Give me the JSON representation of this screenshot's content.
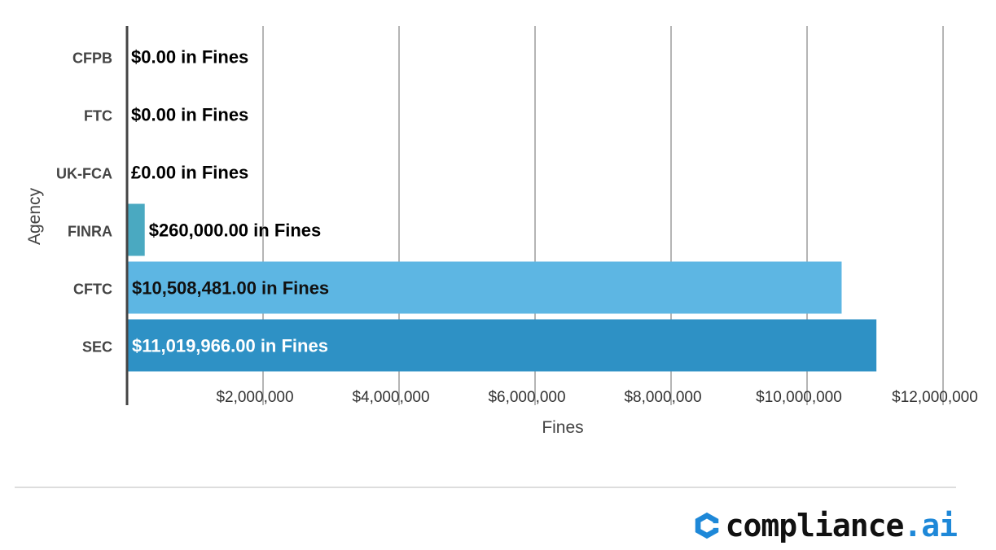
{
  "chart_data": {
    "type": "bar",
    "orientation": "horizontal",
    "categories": [
      "CFPB",
      "FTC",
      "UK-FCA",
      "FINRA",
      "CFTC",
      "SEC"
    ],
    "values": [
      0,
      0,
      0,
      260000,
      10508481,
      11019966
    ],
    "data_labels": [
      "$0.00 in Fines",
      "$0.00 in Fines",
      "£0.00 in Fines",
      "$260,000.00 in Fines",
      "$10,508,481.00 in Fines",
      "$11,019,966.00 in Fines"
    ],
    "bar_colors": [
      "#4aa9c1",
      "#4aa9c1",
      "#4aa9c1",
      "#4aa9c1",
      "#5db6e3",
      "#2e91c5"
    ],
    "label_colors": [
      "#000000",
      "#000000",
      "#000000",
      "#000000",
      "#111111",
      "#ffffff"
    ],
    "xlabel": "Fines",
    "ylabel": "Agency",
    "xlim": [
      0,
      12000000
    ],
    "x_ticks": [
      2000000,
      4000000,
      6000000,
      8000000,
      10000000,
      12000000
    ],
    "x_tick_labels": [
      "$2,000,000",
      "$4,000,000",
      "$6,000,000",
      "$8,000,000",
      "$10,000,000",
      "$12,000,000"
    ],
    "grid": true,
    "legend": "none"
  },
  "branding": {
    "logo_word": "compliance",
    "logo_accent": ".ai",
    "logo_icon": "compliance-ai-logo-icon"
  }
}
